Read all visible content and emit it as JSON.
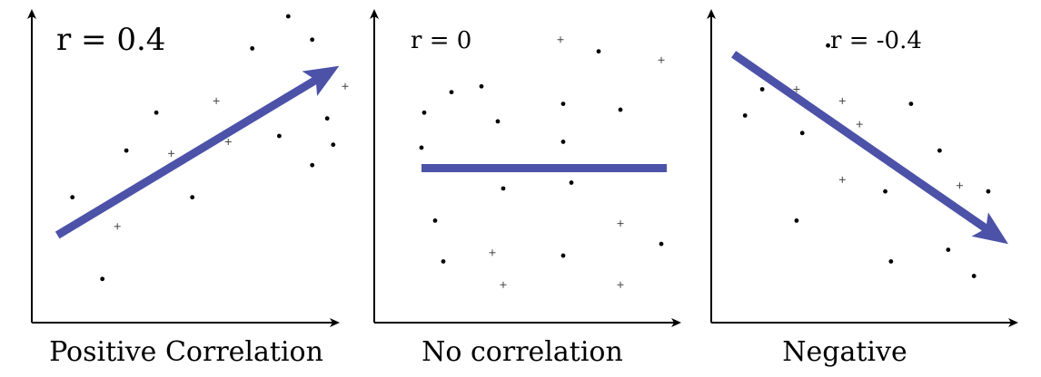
{
  "colors": {
    "trend": "#4c52a8",
    "axis": "#000000",
    "point": "#000000"
  },
  "chart_data": [
    {
      "type": "scatter",
      "annotation": "r = 0.4",
      "xlabel": "Positive Correlation",
      "ylabel": "",
      "xlim": [
        0,
        10
      ],
      "ylim": [
        0,
        10
      ],
      "trend_line": {
        "from": [
          0.4,
          2.5
        ],
        "to": [
          9.8,
          8.3
        ]
      },
      "points": [
        {
          "x": 0.9,
          "y": 3.8,
          "marker": "dot"
        },
        {
          "x": 1.9,
          "y": 1.0,
          "marker": "dot"
        },
        {
          "x": 2.4,
          "y": 2.8,
          "marker": "plus"
        },
        {
          "x": 2.7,
          "y": 5.4,
          "marker": "dot"
        },
        {
          "x": 3.7,
          "y": 6.7,
          "marker": "dot"
        },
        {
          "x": 4.2,
          "y": 5.3,
          "marker": "plus"
        },
        {
          "x": 4.9,
          "y": 3.8,
          "marker": "dot"
        },
        {
          "x": 5.7,
          "y": 7.1,
          "marker": "plus"
        },
        {
          "x": 6.1,
          "y": 5.7,
          "marker": "plus"
        },
        {
          "x": 6.9,
          "y": 8.9,
          "marker": "dot"
        },
        {
          "x": 7.8,
          "y": 5.9,
          "marker": "dot"
        },
        {
          "x": 8.1,
          "y": 10.0,
          "marker": "dot"
        },
        {
          "x": 8.9,
          "y": 4.9,
          "marker": "dot"
        },
        {
          "x": 8.9,
          "y": 9.2,
          "marker": "dot"
        },
        {
          "x": 9.4,
          "y": 6.5,
          "marker": "dot"
        },
        {
          "x": 9.6,
          "y": 5.6,
          "marker": "dot"
        },
        {
          "x": 10.0,
          "y": 7.6,
          "marker": "plus"
        }
      ]
    },
    {
      "type": "scatter",
      "annotation": "r = 0",
      "xlabel": "No correlation",
      "ylabel": "",
      "xlim": [
        0,
        10
      ],
      "ylim": [
        0,
        10
      ],
      "trend_line": {
        "from": [
          0.8,
          4.8
        ],
        "to": [
          9.8,
          4.8
        ]
      },
      "points": [
        {
          "x": 0.8,
          "y": 5.5,
          "marker": "dot"
        },
        {
          "x": 0.9,
          "y": 6.7,
          "marker": "dot"
        },
        {
          "x": 1.3,
          "y": 3.0,
          "marker": "dot"
        },
        {
          "x": 1.6,
          "y": 1.6,
          "marker": "dot"
        },
        {
          "x": 1.9,
          "y": 7.4,
          "marker": "dot"
        },
        {
          "x": 3.0,
          "y": 7.6,
          "marker": "dot"
        },
        {
          "x": 3.4,
          "y": 1.9,
          "marker": "plus"
        },
        {
          "x": 3.6,
          "y": 6.4,
          "marker": "dot"
        },
        {
          "x": 3.8,
          "y": 4.1,
          "marker": "dot"
        },
        {
          "x": 3.8,
          "y": 0.8,
          "marker": "plus"
        },
        {
          "x": 5.9,
          "y": 9.2,
          "marker": "plus"
        },
        {
          "x": 6.0,
          "y": 7.0,
          "marker": "dot"
        },
        {
          "x": 6.0,
          "y": 5.7,
          "marker": "dot"
        },
        {
          "x": 6.0,
          "y": 1.8,
          "marker": "dot"
        },
        {
          "x": 6.3,
          "y": 4.3,
          "marker": "dot"
        },
        {
          "x": 7.3,
          "y": 8.8,
          "marker": "dot"
        },
        {
          "x": 8.1,
          "y": 6.8,
          "marker": "dot"
        },
        {
          "x": 8.1,
          "y": 2.9,
          "marker": "plus"
        },
        {
          "x": 8.1,
          "y": 0.8,
          "marker": "plus"
        },
        {
          "x": 9.6,
          "y": 8.5,
          "marker": "plus"
        },
        {
          "x": 9.6,
          "y": 2.2,
          "marker": "dot"
        }
      ]
    },
    {
      "type": "scatter",
      "annotation": "r = -0.4",
      "xlabel": "Negative",
      "ylabel": "",
      "xlim": [
        0,
        10
      ],
      "ylim": [
        0,
        10
      ],
      "trend_line": {
        "from": [
          0.4,
          8.7
        ],
        "to": [
          10.0,
          2.2
        ]
      },
      "points": [
        {
          "x": 0.8,
          "y": 6.6,
          "marker": "dot"
        },
        {
          "x": 1.4,
          "y": 7.5,
          "marker": "dot"
        },
        {
          "x": 2.6,
          "y": 7.5,
          "marker": "plus"
        },
        {
          "x": 2.8,
          "y": 6.0,
          "marker": "dot"
        },
        {
          "x": 2.6,
          "y": 3.0,
          "marker": "dot"
        },
        {
          "x": 3.7,
          "y": 9.0,
          "marker": "dot"
        },
        {
          "x": 4.2,
          "y": 7.1,
          "marker": "plus"
        },
        {
          "x": 4.2,
          "y": 4.4,
          "marker": "plus"
        },
        {
          "x": 4.8,
          "y": 6.3,
          "marker": "plus"
        },
        {
          "x": 5.7,
          "y": 4.0,
          "marker": "dot"
        },
        {
          "x": 5.9,
          "y": 1.6,
          "marker": "dot"
        },
        {
          "x": 6.6,
          "y": 7.0,
          "marker": "dot"
        },
        {
          "x": 7.6,
          "y": 5.4,
          "marker": "dot"
        },
        {
          "x": 7.9,
          "y": 2.0,
          "marker": "dot"
        },
        {
          "x": 8.3,
          "y": 4.2,
          "marker": "plus"
        },
        {
          "x": 8.8,
          "y": 1.1,
          "marker": "dot"
        },
        {
          "x": 9.3,
          "y": 4.0,
          "marker": "dot"
        }
      ]
    }
  ]
}
